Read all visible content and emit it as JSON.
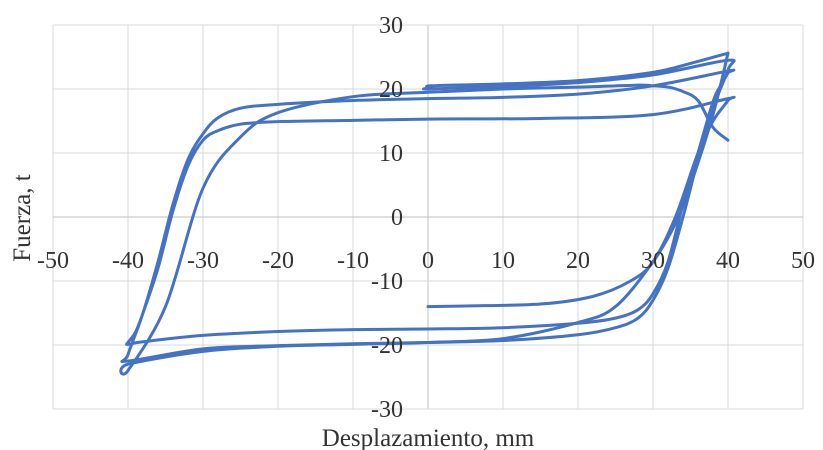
{
  "chart_data": {
    "type": "line",
    "title": "",
    "xlabel": "Desplazamiento, mm",
    "ylabel": "Fuerza, t",
    "xlim": [
      -50,
      50
    ],
    "ylim": [
      -30,
      30
    ],
    "xticks": [
      -50,
      -40,
      -30,
      -20,
      -10,
      0,
      10,
      20,
      30,
      40,
      50
    ],
    "yticks": [
      -30,
      -20,
      -10,
      0,
      10,
      20,
      30
    ],
    "xtick_labels": [
      "-50",
      "-40",
      "-30",
      "-20",
      "-10",
      "0",
      "10",
      "20",
      "30",
      "40",
      "50"
    ],
    "ytick_labels": [
      "-30",
      "-20",
      "-10",
      "0",
      "10",
      "20",
      "30"
    ],
    "grid": true,
    "legend": "none",
    "series_color": "#4472c4",
    "series": [
      {
        "x": [
          0,
          5,
          15,
          22,
          27,
          30,
          33,
          36,
          38,
          40,
          40,
          30,
          15,
          0,
          -10,
          -20,
          -25,
          -28,
          -30,
          -32,
          -34,
          -36,
          -38,
          -39,
          -40,
          -40,
          -38,
          -30,
          -20,
          -10,
          0,
          10,
          20,
          25,
          28,
          30,
          32,
          34,
          36,
          38,
          39,
          40,
          40,
          30,
          20,
          10,
          0,
          -10,
          -20,
          -25,
          -28,
          -30,
          -32,
          -34,
          -36,
          -38,
          -40,
          -40,
          -30,
          -20,
          -10,
          0,
          10,
          20,
          25,
          28,
          30,
          32,
          34,
          36,
          38,
          40,
          40,
          30,
          20,
          10,
          0,
          0.5,
          0.5,
          10,
          20,
          30,
          35,
          40
        ],
        "y": [
          -14,
          -13.9,
          -13.6,
          -12.4,
          -10,
          -7,
          0,
          10,
          15,
          18.2,
          18.5,
          16,
          15.4,
          15.3,
          15.1,
          14.9,
          14.5,
          13.5,
          12,
          8,
          1,
          -8,
          -15,
          -18,
          -19.6,
          -19.9,
          -19.5,
          -18.5,
          -17.9,
          -17.6,
          -17.5,
          -17.3,
          -16.6,
          -15.8,
          -14.5,
          -12,
          -7,
          2,
          10,
          18,
          20.5,
          22.5,
          22.8,
          20.5,
          19.2,
          18.7,
          18.5,
          18.2,
          17.6,
          17,
          15.5,
          13,
          9,
          2,
          -7,
          -15,
          -21.5,
          -22.5,
          -20.6,
          -20.1,
          -19.8,
          -19.6,
          -19.3,
          -18.4,
          -17.3,
          -15.8,
          -13,
          -8,
          0,
          9,
          17,
          23,
          24.5,
          22.2,
          21,
          20.4,
          20,
          20.2,
          20.5,
          20.8,
          21.3,
          22.6,
          24,
          25.6
        ]
      },
      {
        "x": [
          40,
          38,
          35,
          33,
          30,
          25,
          20,
          10,
          0,
          -10,
          -20,
          -30,
          -40,
          -40,
          -35,
          -30,
          -25,
          -20,
          -10,
          0,
          10,
          20,
          28,
          30,
          32,
          34,
          36,
          38,
          40
        ],
        "y": [
          25.6,
          16,
          5,
          -1,
          -7,
          -14,
          -16.5,
          -19,
          -19.6,
          -19.9,
          -20.2,
          -21,
          -23,
          -24,
          -14,
          4.5,
          12.5,
          16.3,
          18.8,
          19.5,
          20,
          20.3,
          20.6,
          20.5,
          20.3,
          19.6,
          18.2,
          14,
          12
        ]
      }
    ]
  }
}
